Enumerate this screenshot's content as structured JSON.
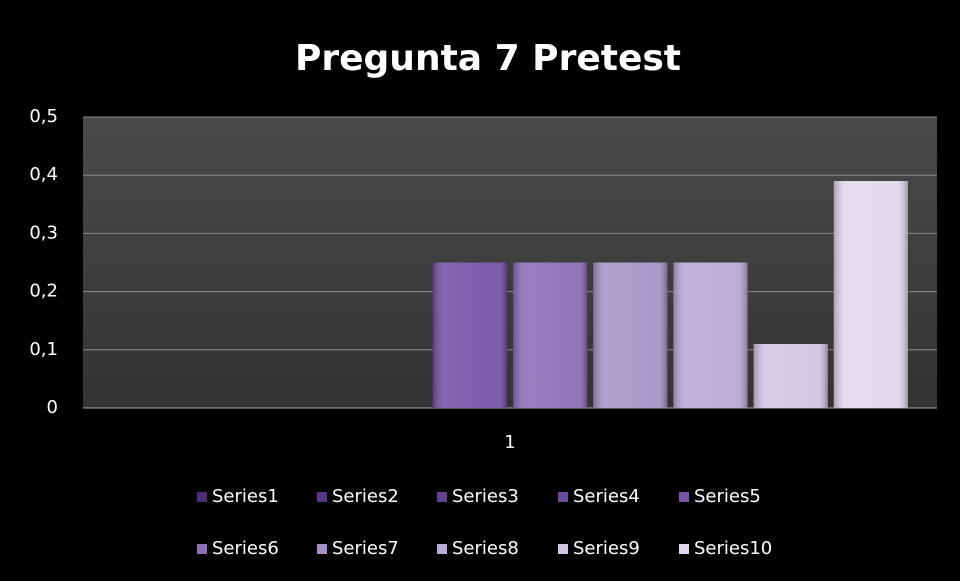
{
  "chart_data": {
    "type": "bar",
    "title": "Pregunta 7 Pretest",
    "categories": [
      "1"
    ],
    "series": [
      {
        "name": "Series1",
        "color": "#4e2c7c",
        "values": [
          0
        ]
      },
      {
        "name": "Series2",
        "color": "#58368a",
        "values": [
          0
        ]
      },
      {
        "name": "Series3",
        "color": "#624096",
        "values": [
          0
        ]
      },
      {
        "name": "Series4",
        "color": "#6c4aa0",
        "values": [
          0
        ]
      },
      {
        "name": "Series5",
        "color": "#7652a8",
        "values": [
          0.25
        ]
      },
      {
        "name": "Series6",
        "color": "#8c6eb8",
        "values": [
          0.25
        ]
      },
      {
        "name": "Series7",
        "color": "#a792c8",
        "values": [
          0.25
        ]
      },
      {
        "name": "Series8",
        "color": "#baaad6",
        "values": [
          0.25
        ]
      },
      {
        "name": "Series9",
        "color": "#d2c6e3",
        "values": [
          0.11
        ]
      },
      {
        "name": "Series10",
        "color": "#e0d8ec",
        "values": [
          0.39
        ]
      }
    ],
    "ylim": [
      0,
      0.5
    ],
    "yticks": [
      0,
      {
        "value": 0.1,
        "label": "0,1"
      },
      {
        "value": 0.2,
        "label": "0,2"
      },
      {
        "value": 0.3,
        "label": "0,3"
      },
      {
        "value": 0.4,
        "label": "0,4"
      },
      {
        "value": 0.5,
        "label": "0,5"
      }
    ],
    "grid": true,
    "legend": "bottom"
  }
}
